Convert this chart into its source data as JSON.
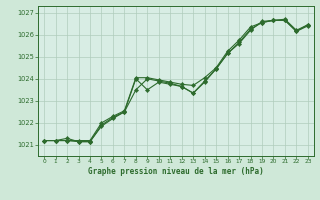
{
  "title": "Graphe pression niveau de la mer (hPa)",
  "background_color": "#cfe8d8",
  "plot_bg_color": "#d8ede4",
  "grid_color": "#b0ccbc",
  "line_color": "#2d6b2d",
  "xlim": [
    -0.5,
    23.5
  ],
  "ylim": [
    1020.5,
    1027.3
  ],
  "xticks": [
    0,
    1,
    2,
    3,
    4,
    5,
    6,
    7,
    8,
    9,
    10,
    11,
    12,
    13,
    14,
    15,
    16,
    17,
    18,
    19,
    20,
    21,
    22,
    23
  ],
  "yticks": [
    1021,
    1022,
    1023,
    1024,
    1025,
    1026,
    1027
  ],
  "line1_x": [
    0,
    1,
    2,
    3,
    4,
    5,
    6,
    7,
    8,
    9,
    10,
    11,
    12,
    13,
    14,
    15,
    16,
    17,
    18,
    19,
    20,
    21,
    22,
    23
  ],
  "line1_y": [
    1021.2,
    1021.2,
    1021.2,
    1021.15,
    1021.15,
    1021.9,
    1022.25,
    1022.5,
    1024.0,
    1023.5,
    1023.85,
    1023.75,
    1023.65,
    1023.35,
    1023.85,
    1024.45,
    1025.15,
    1025.65,
    1026.25,
    1026.55,
    1026.65,
    1026.65,
    1026.15,
    1026.4
  ],
  "line2_x": [
    0,
    1,
    2,
    3,
    4,
    5,
    6,
    7,
    8,
    9,
    10,
    11,
    12,
    13,
    14,
    15,
    16,
    17,
    18,
    19,
    20,
    21,
    22,
    23
  ],
  "line2_y": [
    1021.2,
    1021.2,
    1021.3,
    1021.15,
    1021.15,
    1021.85,
    1022.2,
    1022.5,
    1023.5,
    1024.0,
    1023.9,
    1023.8,
    1023.65,
    1023.35,
    1023.9,
    1024.45,
    1025.15,
    1025.6,
    1026.2,
    1026.6,
    1026.65,
    1026.7,
    1026.2,
    1026.45
  ],
  "line3_x": [
    0,
    1,
    2,
    3,
    4,
    5,
    6,
    7,
    8,
    9,
    10,
    11,
    12,
    13,
    14,
    15,
    16,
    17,
    18,
    19,
    20,
    21,
    22,
    23
  ],
  "line3_y": [
    1021.2,
    1021.2,
    1021.2,
    1021.2,
    1021.2,
    1022.0,
    1022.3,
    1022.55,
    1024.05,
    1024.05,
    1023.95,
    1023.85,
    1023.75,
    1023.7,
    1024.05,
    1024.5,
    1025.25,
    1025.75,
    1026.35,
    1026.55,
    1026.65,
    1026.65,
    1026.15,
    1026.45
  ]
}
